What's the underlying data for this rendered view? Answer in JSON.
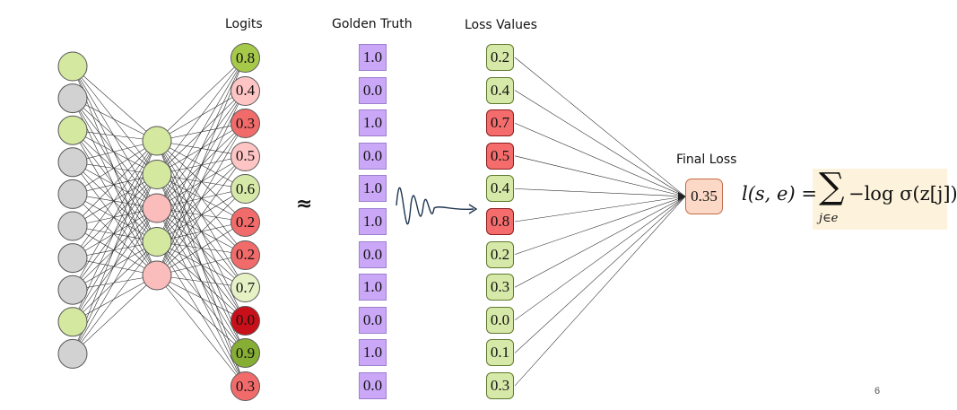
{
  "headers": {
    "logits": "Logits",
    "golden_truth": "Golden Truth",
    "loss_values": "Loss Values",
    "final_loss": "Final Loss"
  },
  "approx_symbol": "≈",
  "network": {
    "input_layer": [
      "green",
      "gray",
      "green",
      "gray",
      "gray",
      "gray",
      "gray",
      "gray",
      "green",
      "gray"
    ],
    "hidden_layer": [
      "green",
      "green",
      "pink",
      "green",
      "pink"
    ]
  },
  "logits": [
    {
      "value": "0.8",
      "color": "#a6c94a"
    },
    {
      "value": "0.4",
      "color": "#ffc4c4"
    },
    {
      "value": "0.3",
      "color": "#f26b6b"
    },
    {
      "value": "0.5",
      "color": "#ffc4c4"
    },
    {
      "value": "0.6",
      "color": "#d7e9a8"
    },
    {
      "value": "0.2",
      "color": "#f26b6b"
    },
    {
      "value": "0.2",
      "color": "#f26b6b"
    },
    {
      "value": "0.7",
      "color": "#e6f2c6"
    },
    {
      "value": "0.0",
      "color": "#c8101a"
    },
    {
      "value": "0.9",
      "color": "#86ad34"
    },
    {
      "value": "0.3",
      "color": "#f26b6b"
    }
  ],
  "golden_truth": [
    "1.0",
    "0.0",
    "1.0",
    "0.0",
    "1.0",
    "1.0",
    "0.0",
    "1.0",
    "0.0",
    "1.0",
    "0.0"
  ],
  "loss_values": [
    {
      "value": "0.2",
      "color": "#d7e9a8"
    },
    {
      "value": "0.4",
      "color": "#d7e9a8"
    },
    {
      "value": "0.7",
      "color": "#f56c6c"
    },
    {
      "value": "0.5",
      "color": "#f56c6c"
    },
    {
      "value": "0.4",
      "color": "#d7e9a8"
    },
    {
      "value": "0.8",
      "color": "#f56c6c"
    },
    {
      "value": "0.2",
      "color": "#d7e9a8"
    },
    {
      "value": "0.3",
      "color": "#d7e9a8"
    },
    {
      "value": "0.0",
      "color": "#d7e9a8"
    },
    {
      "value": "0.1",
      "color": "#d7e9a8"
    },
    {
      "value": "0.3",
      "color": "#d7e9a8"
    }
  ],
  "final_loss": "0.35",
  "formula": {
    "lhs": "l(s, e) =",
    "sum": "∑",
    "subscript": "j∈e",
    "rhs": "−log σ(z[j])"
  },
  "page_number": "6",
  "colors": {
    "green_node": "#d4e8a0",
    "gray_node": "#d2d2d2",
    "pink_node": "#fbbcbc",
    "golden_truth_fill": "#caa8f7",
    "final_loss_fill": "#fcd8c6",
    "formula_highlight": "#fdf3dc"
  }
}
